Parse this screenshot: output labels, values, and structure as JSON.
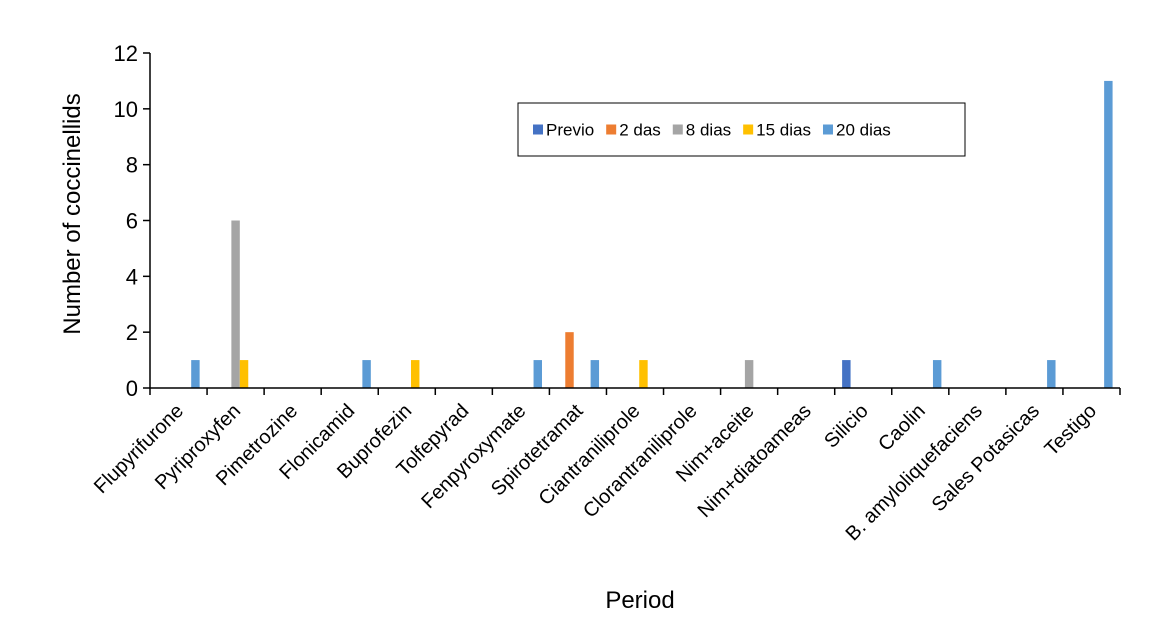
{
  "chart_data": {
    "type": "bar",
    "xlabel": "Period",
    "ylabel": "Number of coccinellids",
    "ylim": [
      0,
      12
    ],
    "yticks": [
      0,
      2,
      4,
      6,
      8,
      10,
      12
    ],
    "grid": false,
    "legend_position": "top-center",
    "categories": [
      "Flupyrifurone",
      "Pyriproxyfen",
      "Pimetrozine",
      "Flonicamid",
      "Buprofezin",
      "Tolfepyrad",
      "Fenpyroxymate",
      "Spirotetramat",
      "Ciantraniliprole",
      "Clorantraniliprole",
      "Nim+aceite",
      "Nim+diatoameas",
      "Silicio",
      "Caolin",
      "B. amyloliquefaciens",
      "Sales Potasicas",
      "Testigo"
    ],
    "series": [
      {
        "name": "Previo",
        "color": "#4472C4",
        "values": [
          0,
          0,
          0,
          0,
          0,
          0,
          0,
          0,
          0,
          0,
          0,
          0,
          1,
          0,
          0,
          0,
          0
        ]
      },
      {
        "name": "2 das",
        "color": "#ED7D31",
        "values": [
          0,
          0,
          0,
          0,
          0,
          0,
          0,
          2,
          0,
          0,
          0,
          0,
          0,
          0,
          0,
          0,
          0
        ]
      },
      {
        "name": "8 dias",
        "color": "#A5A5A5",
        "values": [
          0,
          6,
          0,
          0,
          0,
          0,
          0,
          0,
          0,
          0,
          1,
          0,
          0,
          0,
          0,
          0,
          0
        ]
      },
      {
        "name": "15 dias",
        "color": "#FFC000",
        "values": [
          0,
          1,
          0,
          0,
          1,
          0,
          0,
          0,
          1,
          0,
          0,
          0,
          0,
          0,
          0,
          0,
          0
        ]
      },
      {
        "name": "20 dias",
        "color": "#5B9BD5",
        "values": [
          1,
          0,
          0,
          1,
          0,
          0,
          1,
          1,
          0,
          0,
          0,
          0,
          0,
          1,
          0,
          1,
          11
        ]
      }
    ]
  }
}
